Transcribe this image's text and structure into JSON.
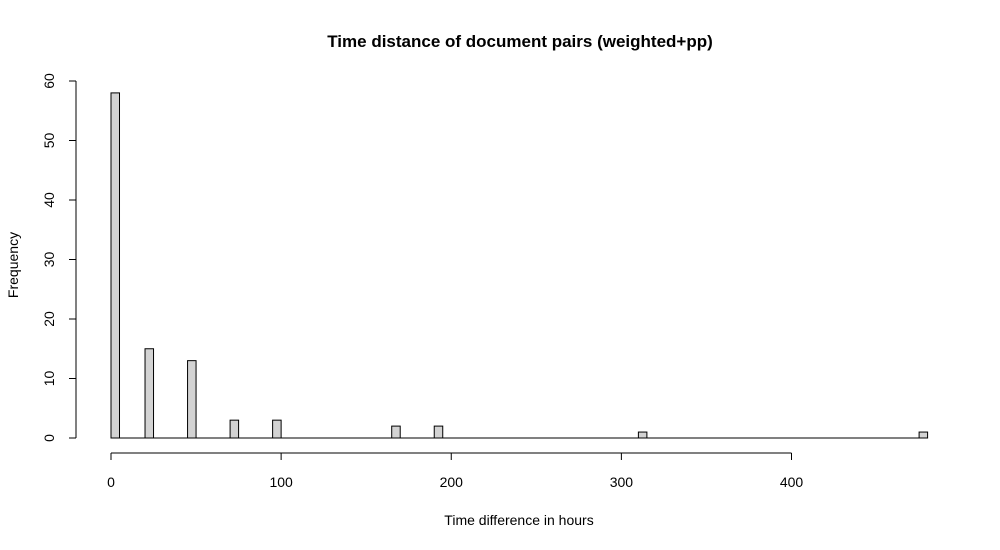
{
  "chart_data": {
    "type": "bar",
    "title": "Time distance of document pairs (weighted+pp)",
    "xlabel": "Time difference in hours",
    "ylabel": "Frequency",
    "xlim": [
      0,
      480
    ],
    "ylim": [
      0,
      60
    ],
    "x_ticks": [
      0,
      100,
      200,
      300,
      400
    ],
    "y_ticks": [
      0,
      10,
      20,
      30,
      40,
      50,
      60
    ],
    "bin_width": 5,
    "bins": [
      {
        "x_start": 0,
        "x_end": 5,
        "value": 58
      },
      {
        "x_start": 20,
        "x_end": 25,
        "value": 15
      },
      {
        "x_start": 45,
        "x_end": 50,
        "value": 13
      },
      {
        "x_start": 70,
        "x_end": 75,
        "value": 3
      },
      {
        "x_start": 95,
        "x_end": 100,
        "value": 3
      },
      {
        "x_start": 165,
        "x_end": 170,
        "value": 2
      },
      {
        "x_start": 190,
        "x_end": 195,
        "value": 2
      },
      {
        "x_start": 310,
        "x_end": 315,
        "value": 1
      },
      {
        "x_start": 475,
        "x_end": 480,
        "value": 1
      }
    ],
    "grid": false,
    "legend": "none",
    "bar_fill": "#d3d3d3",
    "bar_stroke": "#000000"
  }
}
